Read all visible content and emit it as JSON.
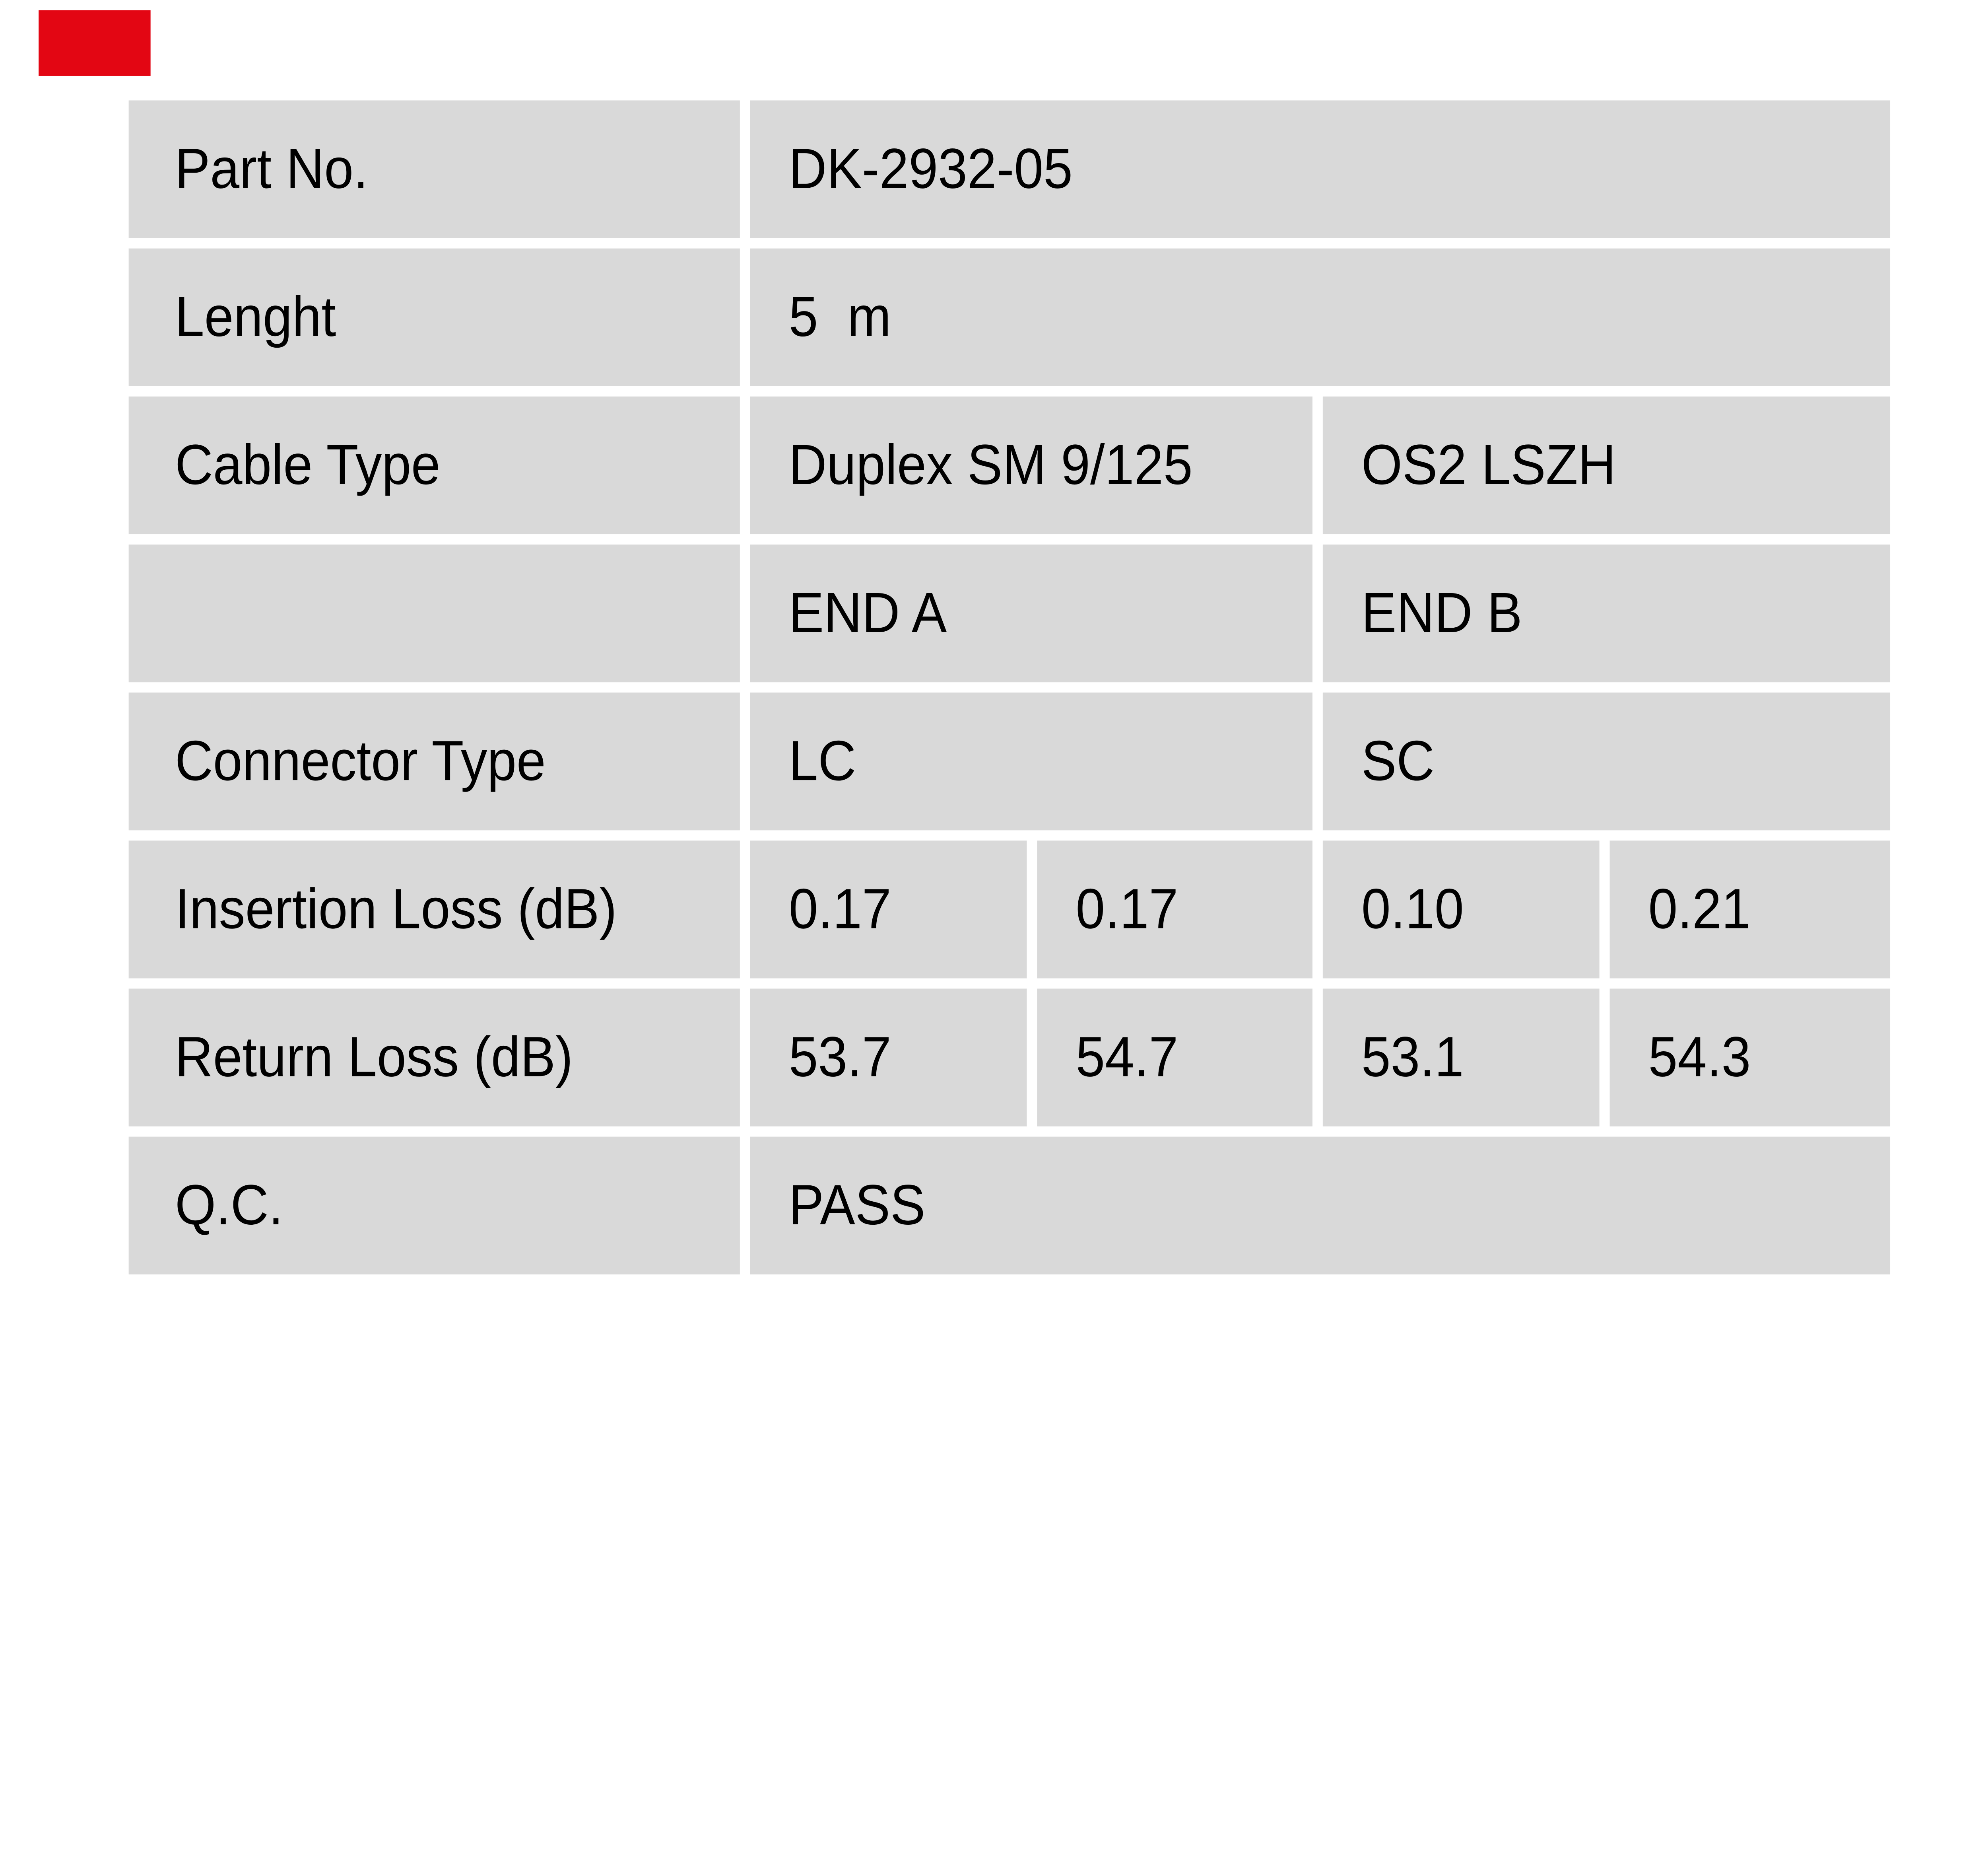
{
  "page": {
    "background_color": "#ffffff",
    "cell_background_color": "#d9d9d9",
    "text_color": "#000000"
  },
  "brand": {
    "logo_color": "#e30613"
  },
  "table": {
    "rows": [
      {
        "label": "Part No.",
        "cells": [
          {
            "text": "DK-2932-05",
            "span": 4
          }
        ]
      },
      {
        "label": "Lenght",
        "cells": [
          {
            "text": "5  m",
            "span": 4
          }
        ]
      },
      {
        "label": "Cable Type",
        "cells": [
          {
            "text": "Duplex SM 9/125",
            "span": 2
          },
          {
            "text": "OS2 LSZH",
            "span": 2
          }
        ]
      },
      {
        "label": "",
        "cells": [
          {
            "text": "END A",
            "span": 2
          },
          {
            "text": "END B",
            "span": 2
          }
        ]
      },
      {
        "label": "Connector Type",
        "cells": [
          {
            "text": "LC",
            "span": 2
          },
          {
            "text": "SC",
            "span": 2
          }
        ]
      },
      {
        "label": "Insertion Loss (dB)",
        "cells": [
          {
            "text": "0.17",
            "span": 1
          },
          {
            "text": "0.17",
            "span": 1
          },
          {
            "text": "0.10",
            "span": 1
          },
          {
            "text": "0.21",
            "span": 1
          }
        ]
      },
      {
        "label": "Return Loss (dB)",
        "cells": [
          {
            "text": "53.7",
            "span": 1
          },
          {
            "text": "54.7",
            "span": 1
          },
          {
            "text": "53.1",
            "span": 1
          },
          {
            "text": "54.3",
            "span": 1
          }
        ]
      },
      {
        "label": "Q.C.",
        "cells": [
          {
            "text": "PASS",
            "span": 4
          }
        ]
      }
    ]
  }
}
